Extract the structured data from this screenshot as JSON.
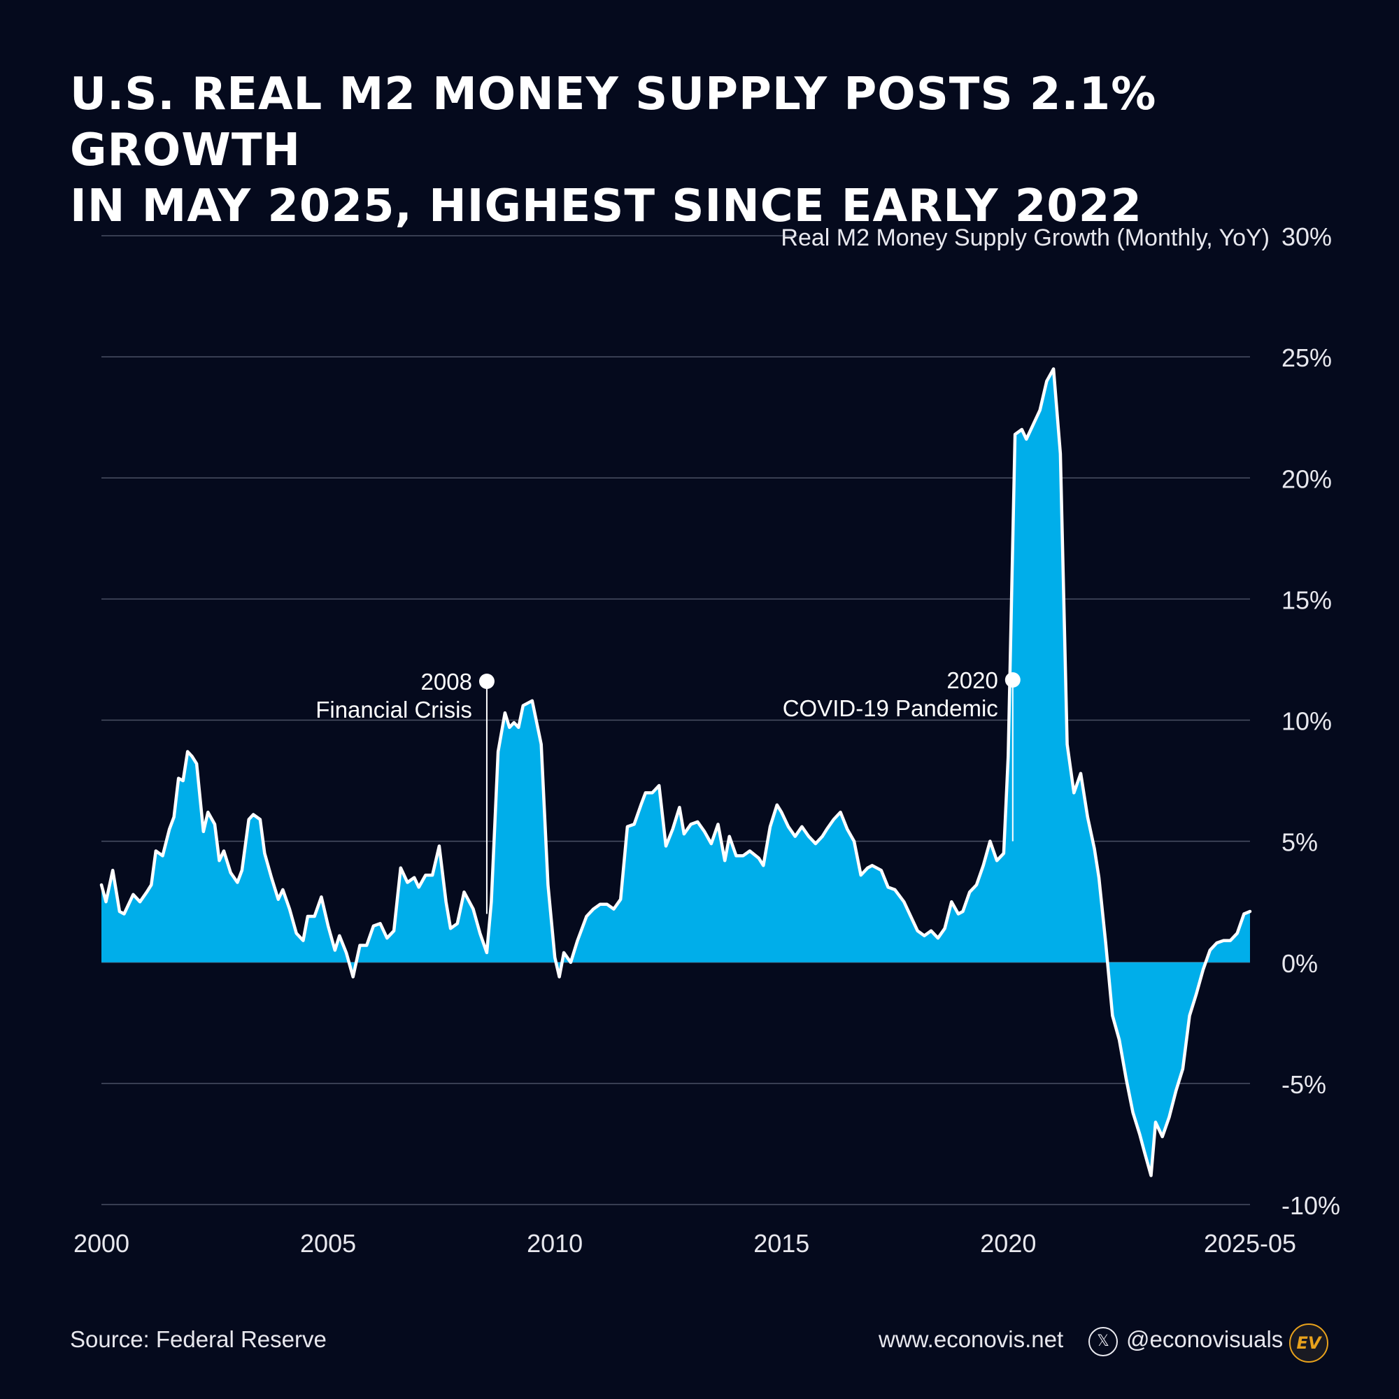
{
  "title": {
    "line1": "U.S. REAL M2 MONEY SUPPLY POSTS 2.1% GROWTH",
    "line2": "IN MAY 2025, HIGHEST SINCE EARLY 2022"
  },
  "footer": {
    "source": "Source: Federal Reserve",
    "website": "www.econovis.net",
    "social_handle": "@econovisuals",
    "social_icon": "x-logo-icon",
    "logo_text": "EV"
  },
  "colors": {
    "background": "#050a1d",
    "area_fill": "#00aeea",
    "line": "#ffffff",
    "grid": "#4a5064",
    "text": "#e8e8ee",
    "logo_accent": "#e8a21c"
  },
  "chart_data": {
    "type": "area",
    "ylabel": "Real M2 Money Supply Growth (Monthly, YoY)",
    "ylim": [
      -10,
      30
    ],
    "xlim": [
      2000.0,
      2025.333
    ],
    "y_ticks": [
      30,
      25,
      20,
      15,
      10,
      5,
      0,
      -5,
      -10
    ],
    "y_tick_labels": [
      "30%",
      "25%",
      "20%",
      "15%",
      "10%",
      "5%",
      "0%",
      "-5%",
      "-10%"
    ],
    "x_ticks": [
      2000,
      2005,
      2010,
      2015,
      2020,
      2025.333
    ],
    "x_tick_labels": [
      "2000",
      "2005",
      "2010",
      "2015",
      "2020",
      "2025-05"
    ],
    "grid": true,
    "annotations": [
      {
        "year": "2008",
        "label": "Financial Crisis",
        "x": 2008.5,
        "y_line_end": 2.0
      },
      {
        "year": "2020",
        "label": "COVID-19 Pandemic",
        "x": 2020.1,
        "y_line_end": 5.0
      }
    ],
    "series": [
      {
        "values": [
          [
            2000.0,
            3.2
          ],
          [
            2000.1,
            2.5
          ],
          [
            2000.25,
            3.8
          ],
          [
            2000.4,
            2.1
          ],
          [
            2000.5,
            2.0
          ],
          [
            2000.7,
            2.8
          ],
          [
            2000.85,
            2.5
          ],
          [
            2001.0,
            2.9
          ],
          [
            2001.1,
            3.2
          ],
          [
            2001.2,
            4.6
          ],
          [
            2001.35,
            4.4
          ],
          [
            2001.5,
            5.5
          ],
          [
            2001.6,
            6.0
          ],
          [
            2001.7,
            7.6
          ],
          [
            2001.8,
            7.5
          ],
          [
            2001.9,
            8.7
          ],
          [
            2002.0,
            8.5
          ],
          [
            2002.1,
            8.2
          ],
          [
            2002.25,
            5.4
          ],
          [
            2002.35,
            6.2
          ],
          [
            2002.5,
            5.7
          ],
          [
            2002.6,
            4.2
          ],
          [
            2002.7,
            4.6
          ],
          [
            2002.85,
            3.7
          ],
          [
            2003.0,
            3.3
          ],
          [
            2003.1,
            3.8
          ],
          [
            2003.25,
            5.9
          ],
          [
            2003.35,
            6.1
          ],
          [
            2003.5,
            5.9
          ],
          [
            2003.6,
            4.5
          ],
          [
            2003.75,
            3.5
          ],
          [
            2003.9,
            2.6
          ],
          [
            2004.0,
            3.0
          ],
          [
            2004.15,
            2.2
          ],
          [
            2004.3,
            1.2
          ],
          [
            2004.45,
            0.9
          ],
          [
            2004.55,
            1.9
          ],
          [
            2004.7,
            1.9
          ],
          [
            2004.85,
            2.7
          ],
          [
            2005.0,
            1.5
          ],
          [
            2005.15,
            0.5
          ],
          [
            2005.25,
            1.1
          ],
          [
            2005.4,
            0.4
          ],
          [
            2005.55,
            -0.6
          ],
          [
            2005.7,
            0.7
          ],
          [
            2005.85,
            0.7
          ],
          [
            2006.0,
            1.5
          ],
          [
            2006.15,
            1.6
          ],
          [
            2006.3,
            1.0
          ],
          [
            2006.45,
            1.3
          ],
          [
            2006.6,
            3.9
          ],
          [
            2006.75,
            3.3
          ],
          [
            2006.9,
            3.5
          ],
          [
            2007.0,
            3.1
          ],
          [
            2007.15,
            3.6
          ],
          [
            2007.3,
            3.6
          ],
          [
            2007.45,
            4.8
          ],
          [
            2007.6,
            2.5
          ],
          [
            2007.7,
            1.4
          ],
          [
            2007.85,
            1.6
          ],
          [
            2008.0,
            2.9
          ],
          [
            2008.2,
            2.2
          ],
          [
            2008.35,
            1.2
          ],
          [
            2008.5,
            0.4
          ],
          [
            2008.6,
            2.5
          ],
          [
            2008.75,
            8.7
          ],
          [
            2008.9,
            10.3
          ],
          [
            2009.0,
            9.7
          ],
          [
            2009.1,
            9.9
          ],
          [
            2009.2,
            9.7
          ],
          [
            2009.3,
            10.6
          ],
          [
            2009.5,
            10.8
          ],
          [
            2009.7,
            9.0
          ],
          [
            2009.85,
            3.2
          ],
          [
            2010.0,
            0.2
          ],
          [
            2010.1,
            -0.6
          ],
          [
            2010.2,
            0.4
          ],
          [
            2010.35,
            0.0
          ],
          [
            2010.5,
            0.9
          ],
          [
            2010.7,
            1.9
          ],
          [
            2010.85,
            2.2
          ],
          [
            2011.0,
            2.4
          ],
          [
            2011.15,
            2.4
          ],
          [
            2011.3,
            2.2
          ],
          [
            2011.45,
            2.6
          ],
          [
            2011.6,
            5.6
          ],
          [
            2011.75,
            5.7
          ],
          [
            2011.9,
            6.5
          ],
          [
            2012.0,
            7.0
          ],
          [
            2012.15,
            7.0
          ],
          [
            2012.3,
            7.3
          ],
          [
            2012.45,
            4.8
          ],
          [
            2012.6,
            5.5
          ],
          [
            2012.75,
            6.4
          ],
          [
            2012.85,
            5.3
          ],
          [
            2013.0,
            5.7
          ],
          [
            2013.15,
            5.8
          ],
          [
            2013.3,
            5.4
          ],
          [
            2013.45,
            4.9
          ],
          [
            2013.6,
            5.7
          ],
          [
            2013.75,
            4.2
          ],
          [
            2013.85,
            5.2
          ],
          [
            2014.0,
            4.4
          ],
          [
            2014.15,
            4.4
          ],
          [
            2014.3,
            4.6
          ],
          [
            2014.5,
            4.3
          ],
          [
            2014.6,
            4.0
          ],
          [
            2014.75,
            5.6
          ],
          [
            2014.9,
            6.5
          ],
          [
            2015.0,
            6.2
          ],
          [
            2015.15,
            5.6
          ],
          [
            2015.3,
            5.2
          ],
          [
            2015.45,
            5.6
          ],
          [
            2015.6,
            5.2
          ],
          [
            2015.75,
            4.9
          ],
          [
            2015.9,
            5.2
          ],
          [
            2016.0,
            5.5
          ],
          [
            2016.15,
            5.9
          ],
          [
            2016.3,
            6.2
          ],
          [
            2016.45,
            5.5
          ],
          [
            2016.6,
            5.0
          ],
          [
            2016.75,
            3.6
          ],
          [
            2016.9,
            3.9
          ],
          [
            2017.0,
            4.0
          ],
          [
            2017.2,
            3.8
          ],
          [
            2017.35,
            3.1
          ],
          [
            2017.5,
            3.0
          ],
          [
            2017.7,
            2.5
          ],
          [
            2017.85,
            1.9
          ],
          [
            2018.0,
            1.3
          ],
          [
            2018.15,
            1.1
          ],
          [
            2018.3,
            1.3
          ],
          [
            2018.45,
            1.0
          ],
          [
            2018.6,
            1.4
          ],
          [
            2018.75,
            2.5
          ],
          [
            2018.9,
            2.0
          ],
          [
            2019.0,
            2.1
          ],
          [
            2019.15,
            2.9
          ],
          [
            2019.3,
            3.2
          ],
          [
            2019.45,
            4.0
          ],
          [
            2019.6,
            5.0
          ],
          [
            2019.75,
            4.2
          ],
          [
            2019.9,
            4.5
          ],
          [
            2020.0,
            8.5
          ],
          [
            2020.15,
            21.8
          ],
          [
            2020.3,
            22.0
          ],
          [
            2020.4,
            21.6
          ],
          [
            2020.55,
            22.2
          ],
          [
            2020.7,
            22.8
          ],
          [
            2020.85,
            24.0
          ],
          [
            2021.0,
            24.5
          ],
          [
            2021.15,
            21.0
          ],
          [
            2021.3,
            9.0
          ],
          [
            2021.45,
            7.0
          ],
          [
            2021.6,
            7.8
          ],
          [
            2021.75,
            6.0
          ],
          [
            2021.9,
            4.7
          ],
          [
            2022.0,
            3.5
          ],
          [
            2022.15,
            0.8
          ],
          [
            2022.3,
            -2.2
          ],
          [
            2022.45,
            -3.2
          ],
          [
            2022.6,
            -4.8
          ],
          [
            2022.75,
            -6.2
          ],
          [
            2022.9,
            -7.1
          ],
          [
            2023.0,
            -7.8
          ],
          [
            2023.15,
            -8.8
          ],
          [
            2023.25,
            -6.6
          ],
          [
            2023.4,
            -7.2
          ],
          [
            2023.55,
            -6.4
          ],
          [
            2023.7,
            -5.3
          ],
          [
            2023.85,
            -4.4
          ],
          [
            2024.0,
            -2.2
          ],
          [
            2024.15,
            -1.3
          ],
          [
            2024.3,
            -0.3
          ],
          [
            2024.45,
            0.5
          ],
          [
            2024.6,
            0.8
          ],
          [
            2024.75,
            0.9
          ],
          [
            2024.9,
            0.9
          ],
          [
            2025.05,
            1.2
          ],
          [
            2025.2,
            2.0
          ],
          [
            2025.333,
            2.1
          ]
        ]
      }
    ]
  }
}
